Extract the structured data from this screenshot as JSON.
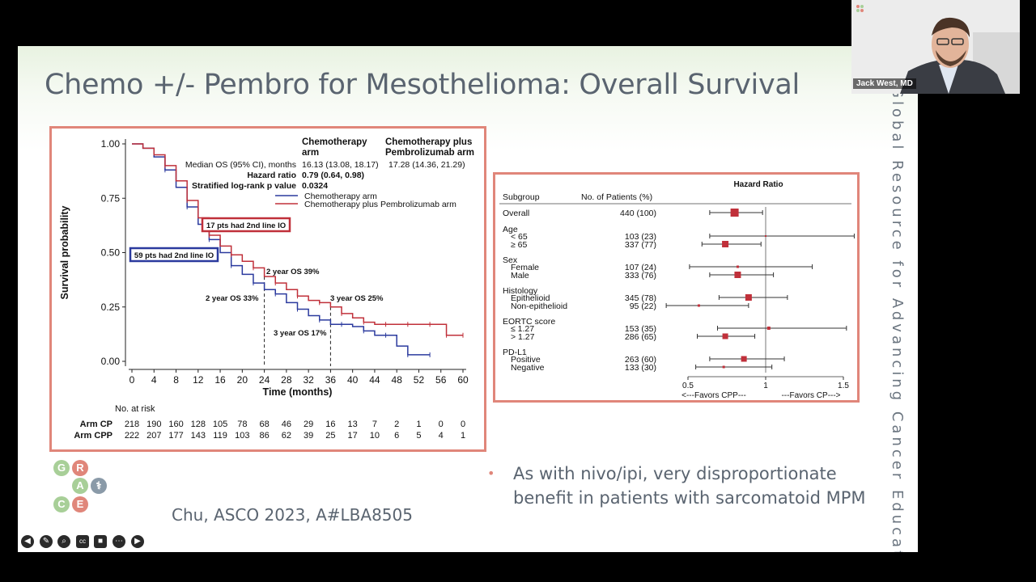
{
  "slide": {
    "title": "Chemo +/- Pembro for Mesothelioma: Overall Survival",
    "side_text": "Global Resource for Advancing Cancer Education",
    "bullet": "As with nivo/ipi, very disproportionate benefit in patients with sarcomatoid MPM",
    "citation": "Chu, ASCO 2023, A#LBA8505",
    "logo_letters": [
      "G",
      "R",
      "A",
      "C",
      "E"
    ],
    "colors": {
      "accent": "#e0867a",
      "text": "#5a6470"
    }
  },
  "video": {
    "name": "Jack West, MD"
  },
  "toolbar": {
    "icons": [
      "back-icon",
      "pen-icon",
      "zoom-icon",
      "cc-icon",
      "camera-icon",
      "more-icon",
      "forward-icon"
    ]
  },
  "chart_data": [
    {
      "type": "line",
      "xlabel": "Time (months)",
      "ylabel": "Survival probability",
      "xlim": [
        0,
        60
      ],
      "ylim": [
        0,
        1
      ],
      "x_ticks": [
        "0",
        "4",
        "8",
        "12",
        "16",
        "20",
        "24",
        "28",
        "32",
        "36",
        "40",
        "44",
        "48",
        "52",
        "56",
        "60"
      ],
      "y_ticks": [
        "0.00",
        "0.25",
        "0.50",
        "0.75",
        "1.00"
      ],
      "series": [
        {
          "name": "Chemotherapy arm",
          "color": "#2b3a9e",
          "x": [
            0,
            2,
            4,
            6,
            8,
            10,
            12,
            14,
            16,
            18,
            20,
            22,
            24,
            26,
            28,
            30,
            32,
            34,
            36,
            38,
            40,
            42,
            44,
            46,
            48,
            50,
            52,
            54
          ],
          "y": [
            1.0,
            0.98,
            0.94,
            0.88,
            0.8,
            0.71,
            0.63,
            0.56,
            0.5,
            0.44,
            0.4,
            0.36,
            0.33,
            0.31,
            0.27,
            0.24,
            0.21,
            0.19,
            0.17,
            0.17,
            0.16,
            0.14,
            0.12,
            0.12,
            0.07,
            0.03,
            0.03,
            0.03
          ]
        },
        {
          "name": "Chemotherapy plus Pembrolizumab arm",
          "color": "#c0303a",
          "x": [
            0,
            2,
            4,
            6,
            8,
            10,
            12,
            14,
            16,
            18,
            20,
            22,
            24,
            26,
            28,
            30,
            32,
            34,
            36,
            38,
            40,
            42,
            44,
            46,
            48,
            50,
            52,
            54,
            56,
            57,
            58,
            60
          ],
          "y": [
            1.0,
            0.98,
            0.95,
            0.9,
            0.83,
            0.74,
            0.66,
            0.58,
            0.53,
            0.49,
            0.46,
            0.43,
            0.39,
            0.36,
            0.33,
            0.3,
            0.28,
            0.27,
            0.25,
            0.22,
            0.2,
            0.18,
            0.17,
            0.17,
            0.17,
            0.17,
            0.17,
            0.17,
            0.17,
            0.12,
            0.12,
            0.12
          ]
        }
      ],
      "info_headers": [
        "Chemotherapy arm",
        "Chemotherapy plus Pembrolizumab arm"
      ],
      "info_rows": [
        {
          "label": "Median OS (95% CI), months",
          "cp": "16.13 (13.08, 18.17)",
          "cpp": "17.28 (14.36, 21.29)"
        },
        {
          "label": "Hazard ratio",
          "cp": "0.79 (0.64, 0.98)",
          "cpp": ""
        },
        {
          "label": "Stratified log-rank p value",
          "cp": "0.0324",
          "cpp": ""
        }
      ],
      "annotations": [
        {
          "text": "17 pts had 2nd line IO",
          "color": "#c0303a"
        },
        {
          "text": "59 pts had 2nd line IO",
          "color": "#2b3a9e"
        },
        {
          "text": "2 year OS 39%"
        },
        {
          "text": "2 year OS 33%"
        },
        {
          "text": "3 year OS 25%"
        },
        {
          "text": "3 year OS 17%"
        }
      ],
      "risk_table": {
        "title": "No. at risk",
        "rows": [
          {
            "label": "Arm CP",
            "values": [
              "218",
              "190",
              "160",
              "128",
              "105",
              "78",
              "68",
              "46",
              "29",
              "16",
              "13",
              "7",
              "2",
              "1",
              "0",
              "0"
            ]
          },
          {
            "label": "Arm CPP",
            "values": [
              "222",
              "207",
              "177",
              "143",
              "119",
              "103",
              "86",
              "62",
              "39",
              "25",
              "17",
              "10",
              "6",
              "5",
              "4",
              "1"
            ]
          }
        ]
      }
    },
    {
      "type": "forest",
      "title": "Hazard Ratio",
      "col_subgroup": "Subgroup",
      "col_patients": "No. of Patients (%)",
      "x_ticks": [
        "0.5",
        "1",
        "1.5"
      ],
      "xlim": [
        0.5,
        1.5
      ],
      "favors_left": "<---Favors CPP---",
      "favors_right": "---Favors CP--->",
      "rows": [
        {
          "label": "Overall",
          "n": "440 (100)",
          "hr": 0.8,
          "lo": 0.64,
          "hi": 0.98,
          "size": 10
        },
        {
          "label": "Age",
          "header": true
        },
        {
          "label": "< 65",
          "n": "103 (23)",
          "hr": 1.0,
          "lo": 0.64,
          "hi": 1.57,
          "size": 2
        },
        {
          "label": "≥ 65",
          "n": "337 (77)",
          "hr": 0.74,
          "lo": 0.59,
          "hi": 0.97,
          "size": 8
        },
        {
          "label": "Sex",
          "header": true
        },
        {
          "label": "Female",
          "n": "107 (24)",
          "hr": 0.82,
          "lo": 0.51,
          "hi": 1.3,
          "size": 3
        },
        {
          "label": "Male",
          "n": "333 (76)",
          "hr": 0.82,
          "lo": 0.64,
          "hi": 1.05,
          "size": 8
        },
        {
          "label": "Histology",
          "header": true
        },
        {
          "label": "Epithelioid",
          "n": "345 (78)",
          "hr": 0.89,
          "lo": 0.7,
          "hi": 1.14,
          "size": 8
        },
        {
          "label": "Non-epithelioid",
          "n": "95 (22)",
          "hr": 0.57,
          "lo": 0.36,
          "hi": 0.89,
          "size": 3
        },
        {
          "label": "EORTC score",
          "header": true
        },
        {
          "label": "≤ 1.27",
          "n": "153 (35)",
          "hr": 1.02,
          "lo": 0.69,
          "hi": 1.52,
          "size": 4
        },
        {
          "label": "> 1.27",
          "n": "286 (65)",
          "hr": 0.74,
          "lo": 0.56,
          "hi": 0.93,
          "size": 7
        },
        {
          "label": "PD-L1",
          "header": true
        },
        {
          "label": "Positive",
          "n": "263 (60)",
          "hr": 0.86,
          "lo": 0.64,
          "hi": 1.12,
          "size": 7
        },
        {
          "label": "Negative",
          "n": "133 (30)",
          "hr": 0.73,
          "lo": 0.55,
          "hi": 1.04,
          "size": 3
        }
      ]
    }
  ]
}
